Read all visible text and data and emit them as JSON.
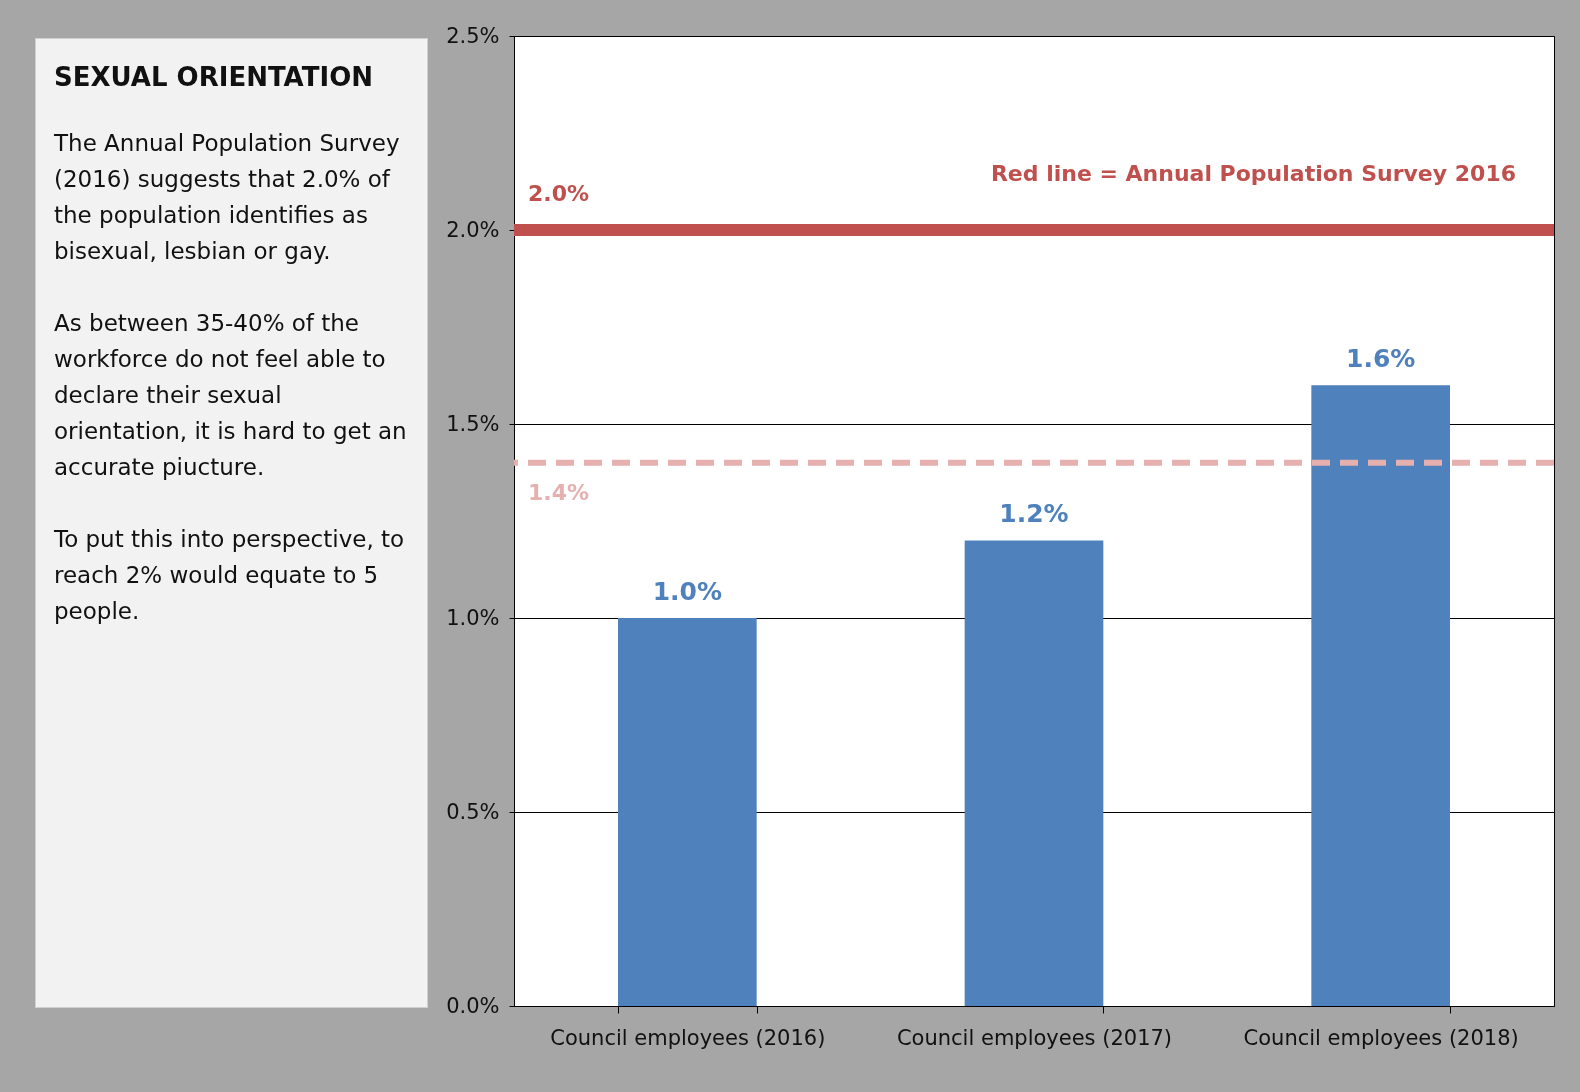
{
  "chart_data": {
    "type": "bar",
    "title": "SEXUAL ORIENTATION",
    "annotations": [
      "The Annual Population Survey (2016) suggests that 2.0% of the population identifies as bisexual, lesbian or gay.",
      "As between 35-40% of the workforce do not feel able  to declare their sexual orientation, it is hard to get an accurate piucture.",
      "To put this into perspective, to reach 2% would  equate to 5 people.",
      "Red line = Annual Population Survey 2016"
    ],
    "categories": [
      "Council employees (2016)",
      "Council employees (2017)",
      "Council employees (2018)"
    ],
    "values": [
      1.0,
      1.2,
      1.6
    ],
    "color": "#4f81bd",
    "value_labels": [
      "1.0%",
      "1.2%",
      "1.6%"
    ],
    "ylim": [
      0,
      2.5
    ],
    "yticks": [
      {
        "value": 0,
        "label": "0.0%"
      },
      {
        "value": 0.5,
        "label": "0.5%"
      },
      {
        "value": 1,
        "label": "1.0%"
      },
      {
        "value": 1.5,
        "label": "1.5%"
      },
      {
        "value": 2,
        "label": "2.0%"
      },
      {
        "value": 2.5,
        "label": "2.5%"
      }
    ],
    "grid": "y",
    "ref_lines": [
      {
        "axis": "y",
        "value": 2.0,
        "label": "2.0%",
        "color": "#c0504d",
        "line_style": "solid"
      },
      {
        "axis": "y",
        "value": 1.4,
        "label": "1.4%",
        "color": "#e6b0ae",
        "line_style": "dashed"
      }
    ]
  }
}
